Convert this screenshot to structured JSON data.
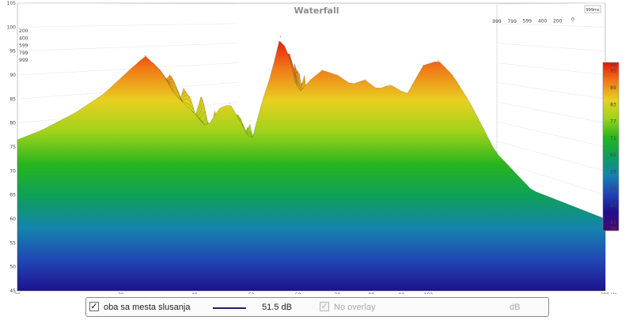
{
  "chart_data": {
    "type": "area",
    "title": "Waterfall",
    "corner_label": "999ms",
    "x_scale": "log",
    "xlim": [
      20,
      200
    ],
    "x_ticks": [
      20,
      30,
      40,
      50,
      60,
      70,
      80,
      90,
      100
    ],
    "x_tick_labels": [
      "20",
      "30",
      "40",
      "50",
      "60",
      "70",
      "80",
      "90",
      "100"
    ],
    "x_end_label": "200 Hz",
    "ylim": [
      45,
      105
    ],
    "y_ticks": [
      45,
      50,
      55,
      60,
      65,
      70,
      75,
      80,
      85,
      90,
      95,
      100,
      105
    ],
    "time_ticks": [
      "0",
      "200",
      "400",
      "599",
      "799",
      "999"
    ],
    "time_ticks_left": [
      "200",
      "400",
      "599",
      "799",
      "999"
    ],
    "color_scale": {
      "min": 38,
      "max": 98,
      "tick_labels": [
        "98",
        "95",
        "89",
        "83",
        "77",
        "71",
        "65",
        "59",
        "53",
        "47",
        "41",
        "38"
      ],
      "colors": [
        "#e8120c",
        "#f07a18",
        "#e8d020",
        "#9ed21a",
        "#27b51e",
        "#0e9f5a",
        "#1484ad",
        "#2146b4",
        "#1d108a",
        "#4b0672"
      ]
    },
    "series": [
      {
        "values": [
          {
            "f": 20,
            "spl": 76.5
          },
          {
            "f": 22,
            "spl": 78.5
          },
          {
            "f": 25,
            "spl": 82
          },
          {
            "f": 28,
            "spl": 86
          },
          {
            "f": 31,
            "spl": 91
          },
          {
            "f": 33,
            "spl": 94
          },
          {
            "f": 35,
            "spl": 91
          },
          {
            "f": 37,
            "spl": 86
          },
          {
            "f": 40,
            "spl": 82
          },
          {
            "f": 42,
            "spl": 79
          },
          {
            "f": 44,
            "spl": 83
          },
          {
            "f": 46,
            "spl": 84
          },
          {
            "f": 48,
            "spl": 80
          },
          {
            "f": 50,
            "spl": 76
          },
          {
            "f": 52,
            "spl": 84
          },
          {
            "f": 54,
            "spl": 90
          },
          {
            "f": 56,
            "spl": 98
          },
          {
            "f": 58,
            "spl": 94
          },
          {
            "f": 60,
            "spl": 86
          },
          {
            "f": 63,
            "spl": 89
          },
          {
            "f": 66,
            "spl": 91
          },
          {
            "f": 70,
            "spl": 90
          },
          {
            "f": 74,
            "spl": 88
          },
          {
            "f": 78,
            "spl": 89
          },
          {
            "f": 82,
            "spl": 87
          },
          {
            "f": 86,
            "spl": 88
          },
          {
            "f": 92,
            "spl": 86
          },
          {
            "f": 98,
            "spl": 92
          },
          {
            "f": 104,
            "spl": 93
          },
          {
            "f": 110,
            "spl": 90
          },
          {
            "f": 118,
            "spl": 84
          },
          {
            "f": 130,
            "spl": 74
          },
          {
            "f": 150,
            "spl": 66
          },
          {
            "f": 200,
            "spl": 60
          }
        ]
      }
    ]
  },
  "bottom_bar": {
    "checked_glyph": "✓",
    "measurement_name": "oba sa mesta slusanja",
    "level": "51.5 dB",
    "overlay_label": "No overlay",
    "overlay_unit": "dB"
  }
}
